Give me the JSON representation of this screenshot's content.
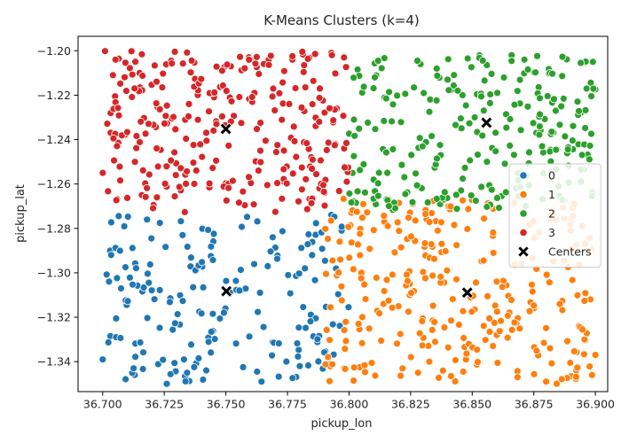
{
  "chart_data": {
    "type": "scatter",
    "title": "K-Means Clusters (k=4)",
    "xlabel": "pickup_lon",
    "ylabel": "pickup_lat",
    "xlim": [
      36.69,
      36.905
    ],
    "ylim": [
      -1.3535,
      -1.1935
    ],
    "xticks": [
      36.7,
      36.725,
      36.75,
      36.775,
      36.8,
      36.825,
      36.85,
      36.875,
      36.9
    ],
    "xtick_labels": [
      "36.700",
      "36.725",
      "36.750",
      "36.775",
      "36.800",
      "36.825",
      "36.850",
      "36.875",
      "36.900"
    ],
    "yticks": [
      -1.34,
      -1.32,
      -1.3,
      -1.28,
      -1.26,
      -1.24,
      -1.22,
      -1.2
    ],
    "ytick_labels": [
      "−1.34",
      "−1.32",
      "−1.30",
      "−1.28",
      "−1.26",
      "−1.24",
      "−1.22",
      "−1.20"
    ],
    "grid": false,
    "legend_position": "center-right",
    "series": [
      {
        "name": "0",
        "color": "#1f77b4",
        "region": {
          "x": [
            36.7,
            36.8
          ],
          "y": [
            -1.35,
            -1.273
          ]
        },
        "count": 190,
        "sample_points": [
          [
            36.7,
            -1.339
          ],
          [
            36.703,
            -1.29
          ],
          [
            36.713,
            -1.346
          ],
          [
            36.718,
            -1.276
          ],
          [
            36.726,
            -1.35
          ],
          [
            36.733,
            -1.339
          ],
          [
            36.756,
            -1.308
          ],
          [
            36.767,
            -1.297
          ],
          [
            36.785,
            -1.292
          ],
          [
            36.797,
            -1.281
          ],
          [
            36.78,
            -1.342
          ],
          [
            36.769,
            -1.284
          ]
        ]
      },
      {
        "name": "1",
        "color": "#ff7f0e",
        "region": {
          "x": [
            36.79,
            36.9
          ],
          "y": [
            -1.35,
            -1.266
          ]
        },
        "count": 300,
        "sample_points": [
          [
            36.798,
            -1.343
          ],
          [
            36.805,
            -1.3
          ],
          [
            36.814,
            -1.314
          ],
          [
            36.828,
            -1.345
          ],
          [
            36.836,
            -1.281
          ],
          [
            36.848,
            -1.309
          ],
          [
            36.86,
            -1.328
          ],
          [
            36.87,
            -1.296
          ],
          [
            36.88,
            -1.349
          ],
          [
            36.89,
            -1.281
          ],
          [
            36.898,
            -1.312
          ],
          [
            36.9,
            -1.337
          ]
        ]
      },
      {
        "name": "2",
        "color": "#2ca02c",
        "region": {
          "x": [
            36.8,
            36.9
          ],
          "y": [
            -1.272,
            -1.201
          ]
        },
        "count": 255,
        "sample_points": [
          [
            36.802,
            -1.231
          ],
          [
            36.81,
            -1.258
          ],
          [
            36.818,
            -1.244
          ],
          [
            36.829,
            -1.206
          ],
          [
            36.84,
            -1.213
          ],
          [
            36.851,
            -1.23
          ],
          [
            36.856,
            -1.25
          ],
          [
            36.866,
            -1.202
          ],
          [
            36.876,
            -1.237
          ],
          [
            36.885,
            -1.261
          ],
          [
            36.894,
            -1.228
          ],
          [
            36.899,
            -1.205
          ]
        ]
      },
      {
        "name": "3",
        "color": "#d62728",
        "region": {
          "x": [
            36.7,
            36.8
          ],
          "y": [
            -1.273,
            -1.2
          ]
        },
        "count": 290,
        "sample_points": [
          [
            36.7,
            -1.255
          ],
          [
            36.705,
            -1.226
          ],
          [
            36.715,
            -1.21
          ],
          [
            36.722,
            -1.266
          ],
          [
            36.735,
            -1.224
          ],
          [
            36.745,
            -1.236
          ],
          [
            36.752,
            -1.207
          ],
          [
            36.764,
            -1.245
          ],
          [
            36.777,
            -1.204
          ],
          [
            36.788,
            -1.262
          ],
          [
            36.795,
            -1.226
          ],
          [
            36.798,
            -1.244
          ]
        ]
      }
    ],
    "centers": {
      "name": "Centers",
      "color": "#000000",
      "marker": "X",
      "points": [
        [
          36.7502,
          -1.3083
        ],
        [
          36.848,
          -1.3089
        ],
        [
          36.8558,
          -1.2324
        ],
        [
          36.75,
          -1.2352
        ]
      ]
    }
  }
}
